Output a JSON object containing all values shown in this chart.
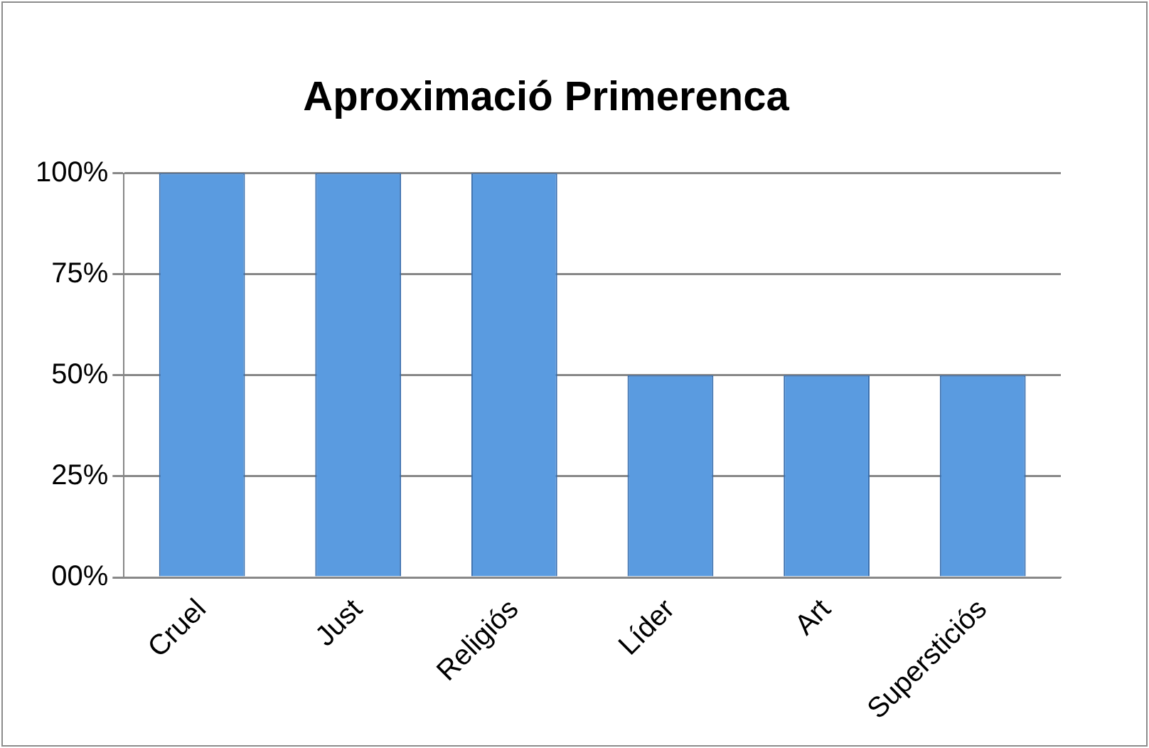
{
  "chart_data": {
    "type": "bar",
    "title": "Aproximació Primerenca",
    "categories": [
      "Cruel",
      "Just",
      "Religiós",
      "Líder",
      "Art",
      "Supersticiós"
    ],
    "values": [
      100,
      100,
      100,
      50,
      50,
      50
    ],
    "color": "#5a9be0",
    "ylim": [
      0,
      100
    ],
    "yticks": [
      {
        "value": 0,
        "label": "00%"
      },
      {
        "value": 25,
        "label": "25%"
      },
      {
        "value": 50,
        "label": "50%"
      },
      {
        "value": 75,
        "label": "75%"
      },
      {
        "value": 100,
        "label": "100%"
      }
    ],
    "grid": "y",
    "legend": false
  }
}
